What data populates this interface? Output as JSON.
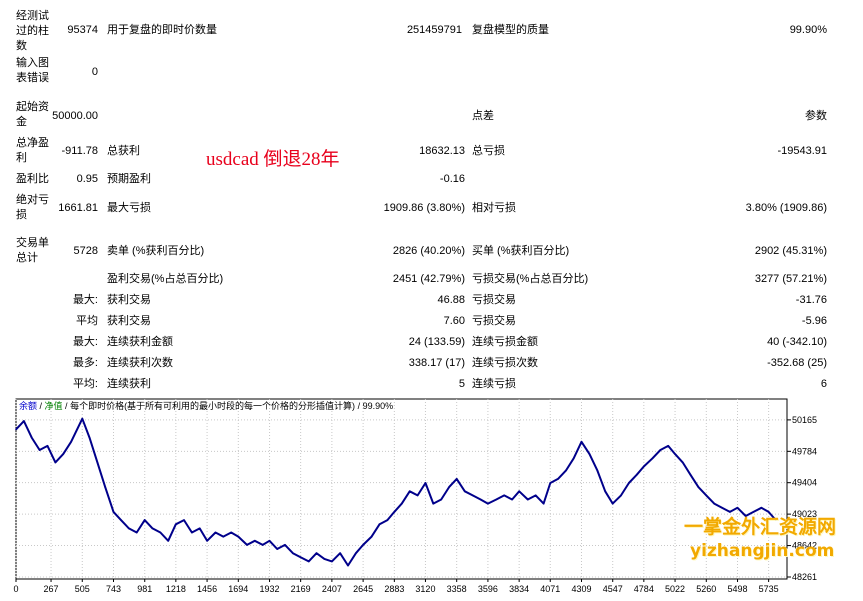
{
  "report": {
    "bars_tested_label": "经测试过的柱数",
    "bars_tested_value": "95374",
    "ticks_label": "用于复盘的即时价数量",
    "ticks_value": "251459791",
    "quality_label": "复盘模型的质量",
    "quality_value": "99.90%",
    "errors_label": "输入图表错误",
    "errors_value": "0",
    "deposit_label": "起始资金",
    "deposit_value": "50000.00",
    "spread_label": "点差",
    "spread_value": "参数",
    "net_label": "总净盈利",
    "net_value": "-911.78",
    "gross_profit_label": "总获利",
    "gross_profit_value": "18632.13",
    "gross_loss_label": "总亏损",
    "gross_loss_value": "-19543.91",
    "profit_factor_label": "盈利比",
    "profit_factor_value": "0.95",
    "expected_label": "预期盈利",
    "expected_value": "-0.16",
    "abs_dd_label": "绝对亏损",
    "abs_dd_value": "1661.81",
    "max_dd_label": "最大亏损",
    "max_dd_value": "1909.86 (3.80%)",
    "rel_dd_label": "相对亏损",
    "rel_dd_value": "3.80% (1909.86)",
    "trades_label": "交易单总计",
    "trades_value": "5728",
    "short_label": "卖单 (%获利百分比)",
    "short_value": "2826 (40.20%)",
    "long_label": "买单 (%获利百分比)",
    "long_value": "2902 (45.31%)",
    "profit_trades_label": "盈利交易(%占总百分比)",
    "profit_trades_value": "2451 (42.79%)",
    "loss_trades_label": "亏损交易(%占总百分比)",
    "loss_trades_value": "3277 (57.21%)",
    "largest_prefix": "最大:",
    "largest_profit_label": "获利交易",
    "largest_profit_value": "46.88",
    "largest_loss_label": "亏损交易",
    "largest_loss_value": "-31.76",
    "average_prefix": "平均",
    "avg_profit_label": "获利交易",
    "avg_profit_value": "7.60",
    "avg_loss_label": "亏损交易",
    "avg_loss_value": "-5.96",
    "max_prefix": "最大:",
    "max_cons_wins_label": "连续获利金额",
    "max_cons_wins_value": "24 (133.59)",
    "max_cons_losses_label": "连续亏损金额",
    "max_cons_losses_value": "40 (-342.10)",
    "maximal_prefix": "最多:",
    "maximal_cons_profit_label": "连续获利次数",
    "maximal_cons_profit_value": "338.17 (17)",
    "maximal_cons_loss_label": "连续亏损次数",
    "maximal_cons_loss_value": "-352.68 (25)",
    "avg2_prefix": "平均:",
    "avg_cons_wins_label": "连续获利",
    "avg_cons_wins_value": "5",
    "avg_cons_losses_label": "连续亏损",
    "avg_cons_losses_value": "6"
  },
  "annotation": "usdcad  倒退28年",
  "watermark": {
    "line1": "一掌金外汇资源网",
    "line2": "yizhangjin.com",
    "color": "#f2a900"
  },
  "chart_data": {
    "type": "line",
    "legend_balance": "余额",
    "legend_sep1": " / ",
    "legend_equity": "净值",
    "legend_sep2": " / ",
    "legend_desc": "每个即时价格(基于所有可利用的最小时段的每一个价格的分形插值计算)",
    "legend_sep3": " / ",
    "legend_quality": "99.90%",
    "x_ticks": [
      "0",
      "267",
      "505",
      "743",
      "981",
      "1218",
      "1456",
      "1694",
      "1932",
      "2169",
      "2407",
      "2645",
      "2883",
      "3120",
      "3358",
      "3596",
      "3834",
      "4071",
      "4309",
      "4547",
      "4784",
      "5022",
      "5260",
      "5498",
      "5735"
    ],
    "y_ticks": [
      "50165",
      "49784",
      "49404",
      "49023",
      "48642",
      "48261"
    ],
    "xlim": [
      0,
      5875
    ],
    "ylim": [
      48261,
      50200
    ],
    "series": [
      {
        "color": "#00008b",
        "x": [
          0,
          60,
          120,
          180,
          240,
          300,
          360,
          420,
          505,
          560,
          620,
          680,
          743,
          800,
          860,
          920,
          981,
          1040,
          1100,
          1160,
          1218,
          1280,
          1340,
          1400,
          1456,
          1520,
          1580,
          1640,
          1694,
          1760,
          1820,
          1880,
          1932,
          1990,
          2050,
          2110,
          2169,
          2230,
          2290,
          2350,
          2407,
          2470,
          2530,
          2590,
          2645,
          2710,
          2770,
          2830,
          2883,
          2940,
          3000,
          3060,
          3120,
          3180,
          3240,
          3300,
          3358,
          3420,
          3480,
          3540,
          3596,
          3660,
          3720,
          3780,
          3834,
          3900,
          3960,
          4020,
          4071,
          4130,
          4190,
          4250,
          4309,
          4370,
          4430,
          4490,
          4547,
          4610,
          4670,
          4730,
          4784,
          4850,
          4910,
          4970,
          5022,
          5080,
          5140,
          5200,
          5260,
          5320,
          5380,
          5440,
          5498,
          5560,
          5620,
          5680,
          5735,
          5790
        ],
        "y": [
          50050,
          50150,
          49950,
          49800,
          49850,
          49650,
          49750,
          49900,
          50180,
          49950,
          49650,
          49350,
          49050,
          48950,
          48850,
          48800,
          48950,
          48850,
          48800,
          48700,
          48900,
          48950,
          48800,
          48850,
          48700,
          48800,
          48750,
          48800,
          48750,
          48650,
          48700,
          48650,
          48700,
          48600,
          48650,
          48550,
          48500,
          48450,
          48550,
          48480,
          48450,
          48550,
          48400,
          48550,
          48650,
          48750,
          48900,
          48950,
          49050,
          49150,
          49300,
          49250,
          49400,
          49150,
          49200,
          49350,
          49450,
          49300,
          49250,
          49200,
          49150,
          49200,
          49250,
          49200,
          49300,
          49200,
          49250,
          49150,
          49400,
          49450,
          49550,
          49700,
          49900,
          49750,
          49550,
          49300,
          49150,
          49250,
          49400,
          49500,
          49600,
          49700,
          49800,
          49850,
          49750,
          49650,
          49500,
          49350,
          49250,
          49150,
          49100,
          49050,
          49100,
          49000,
          49050,
          49100,
          49050,
          48950
        ]
      }
    ]
  }
}
